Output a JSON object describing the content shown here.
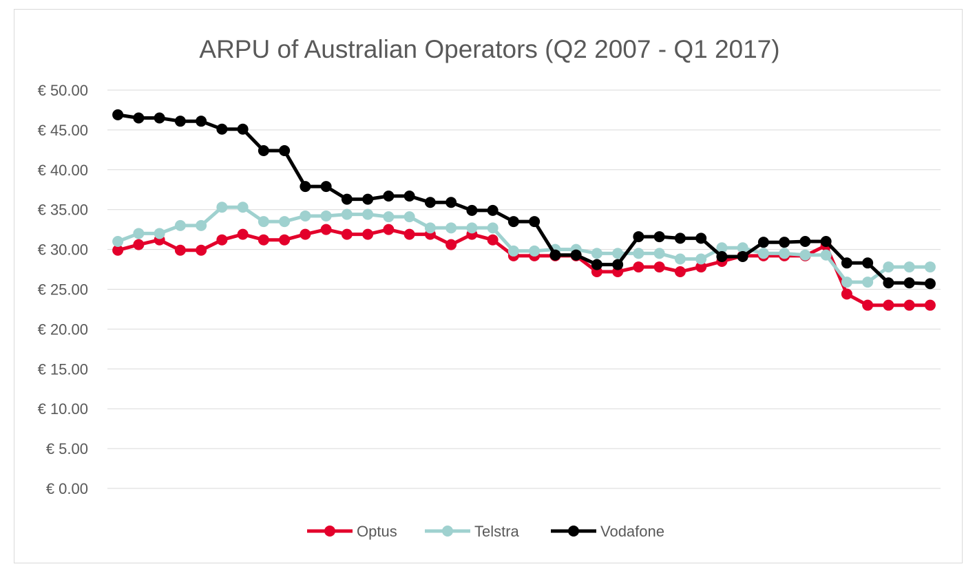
{
  "chart_data": {
    "type": "line",
    "title": "ARPU of Australian Operators (Q2 2007 - Q1 2017)",
    "xlabel": "",
    "ylabel": "",
    "ylim": [
      0,
      50
    ],
    "y_ticks": [
      0,
      5,
      10,
      15,
      20,
      25,
      30,
      35,
      40,
      45,
      50
    ],
    "y_tick_labels": [
      "€ 0.00",
      "€ 5.00",
      "€ 10.00",
      "€ 15.00",
      "€ 20.00",
      "€ 25.00",
      "€ 30.00",
      "€ 35.00",
      "€ 40.00",
      "€ 45.00",
      "€ 50.00"
    ],
    "grid": true,
    "legend_position": "bottom",
    "x": [
      1,
      2,
      3,
      4,
      5,
      6,
      7,
      8,
      9,
      10,
      11,
      12,
      13,
      14,
      15,
      16,
      17,
      18,
      19,
      20,
      21,
      22,
      23,
      24,
      25,
      26,
      27,
      28,
      29,
      30,
      31,
      32,
      33,
      34,
      35,
      36,
      37,
      38,
      39,
      40
    ],
    "series": [
      {
        "name": "Optus",
        "color": "#e3002b",
        "values": [
          29.9,
          30.6,
          31.2,
          29.9,
          29.9,
          31.2,
          31.9,
          31.2,
          31.2,
          31.9,
          32.5,
          31.9,
          31.9,
          32.5,
          31.9,
          31.9,
          30.6,
          31.9,
          31.2,
          29.2,
          29.2,
          29.2,
          29.2,
          27.2,
          27.2,
          27.8,
          27.8,
          27.2,
          27.8,
          28.5,
          29.2,
          29.2,
          29.2,
          29.2,
          30.5,
          24.4,
          23.0,
          23.0,
          23.0,
          23.0
        ]
      },
      {
        "name": "Telstra",
        "color": "#9fd1cf",
        "values": [
          31.0,
          32.0,
          32.0,
          33.0,
          33.0,
          35.3,
          35.3,
          33.5,
          33.5,
          34.2,
          34.2,
          34.4,
          34.4,
          34.1,
          34.1,
          32.7,
          32.7,
          32.7,
          32.7,
          29.8,
          29.8,
          30.0,
          30.0,
          29.5,
          29.5,
          29.5,
          29.5,
          28.8,
          28.8,
          30.2,
          30.2,
          29.5,
          29.5,
          29.3,
          29.3,
          25.9,
          25.9,
          27.8,
          27.8,
          27.8
        ]
      },
      {
        "name": "Vodafone",
        "color": "#000000",
        "values": [
          46.9,
          46.5,
          46.5,
          46.1,
          46.1,
          45.1,
          45.1,
          42.4,
          42.4,
          37.9,
          37.9,
          36.3,
          36.3,
          36.7,
          36.7,
          35.9,
          35.9,
          34.9,
          34.9,
          33.5,
          33.5,
          29.3,
          29.3,
          28.1,
          28.1,
          31.6,
          31.6,
          31.4,
          31.4,
          29.1,
          29.1,
          30.9,
          30.9,
          31.0,
          31.0,
          28.3,
          28.3,
          25.8,
          25.8,
          25.7
        ]
      }
    ]
  }
}
